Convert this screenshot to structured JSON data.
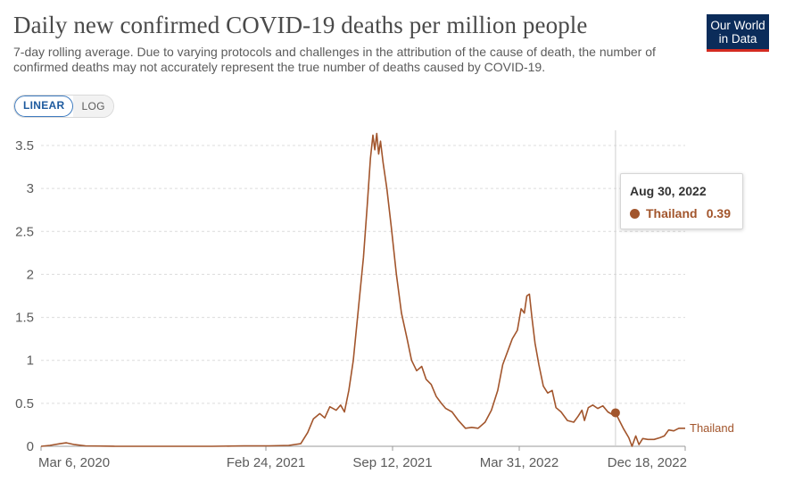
{
  "header": {
    "title": "Daily new confirmed COVID-19 deaths per million people",
    "subtitle": "7-day rolling average. Due to varying protocols and challenges in the attribution of the cause of death, the number of confirmed deaths may not accurately represent the true number of deaths caused by COVID-19."
  },
  "logo": {
    "line1": "Our World",
    "line2": "in Data",
    "bg_color": "#0b2c5a",
    "accent_color": "#d42b21"
  },
  "controls": {
    "linear_label": "LINEAR",
    "log_label": "LOG",
    "selected": "LINEAR"
  },
  "tooltip": {
    "date": "Aug 30, 2022",
    "series": "Thailand",
    "value": "0.39"
  },
  "chart_data": {
    "type": "line",
    "title": "Daily new confirmed COVID-19 deaths per million people",
    "subtitle": "7-day rolling average. Due to varying protocols and challenges in the attribution of the cause of death, the number of confirmed deaths may not accurately represent the true number of deaths caused by COVID-19.",
    "x_ticks": [
      "Mar 6, 2020",
      "Feb 24, 2021",
      "Sep 12, 2021",
      "Mar 31, 2022",
      "Dec 18, 2022"
    ],
    "y_ticks": [
      "0",
      "0.5",
      "1",
      "1.5",
      "2",
      "2.5",
      "3",
      "3.5"
    ],
    "xlim": [
      "2020-03-06",
      "2022-12-18"
    ],
    "ylim": [
      0,
      3.6
    ],
    "grid": "horizontal dashed",
    "log_scale": false,
    "hover_date": "2022-08-30",
    "series": [
      {
        "name": "Thailand",
        "color": "#a2552c",
        "points": [
          [
            "2020-03-06",
            0.0
          ],
          [
            "2020-03-20",
            0.01
          ],
          [
            "2020-04-05",
            0.03
          ],
          [
            "2020-04-15",
            0.04
          ],
          [
            "2020-04-28",
            0.02
          ],
          [
            "2020-05-15",
            0.005
          ],
          [
            "2020-07-01",
            0.0
          ],
          [
            "2020-12-01",
            0.0
          ],
          [
            "2021-01-20",
            0.005
          ],
          [
            "2021-03-01",
            0.005
          ],
          [
            "2021-04-01",
            0.01
          ],
          [
            "2021-04-20",
            0.03
          ],
          [
            "2021-05-01",
            0.16
          ],
          [
            "2021-05-10",
            0.32
          ],
          [
            "2021-05-20",
            0.38
          ],
          [
            "2021-05-28",
            0.33
          ],
          [
            "2021-06-05",
            0.46
          ],
          [
            "2021-06-15",
            0.42
          ],
          [
            "2021-06-22",
            0.48
          ],
          [
            "2021-06-28",
            0.4
          ],
          [
            "2021-07-05",
            0.65
          ],
          [
            "2021-07-12",
            1.0
          ],
          [
            "2021-07-20",
            1.6
          ],
          [
            "2021-07-28",
            2.2
          ],
          [
            "2021-08-03",
            2.8
          ],
          [
            "2021-08-08",
            3.35
          ],
          [
            "2021-08-12",
            3.62
          ],
          [
            "2021-08-15",
            3.45
          ],
          [
            "2021-08-18",
            3.64
          ],
          [
            "2021-08-21",
            3.4
          ],
          [
            "2021-08-24",
            3.55
          ],
          [
            "2021-08-28",
            3.3
          ],
          [
            "2021-09-03",
            3.0
          ],
          [
            "2021-09-10",
            2.55
          ],
          [
            "2021-09-18",
            2.0
          ],
          [
            "2021-09-26",
            1.55
          ],
          [
            "2021-10-05",
            1.25
          ],
          [
            "2021-10-12",
            1.0
          ],
          [
            "2021-10-20",
            0.88
          ],
          [
            "2021-10-28",
            0.93
          ],
          [
            "2021-11-04",
            0.78
          ],
          [
            "2021-11-12",
            0.72
          ],
          [
            "2021-11-20",
            0.58
          ],
          [
            "2021-11-28",
            0.5
          ],
          [
            "2021-12-05",
            0.44
          ],
          [
            "2021-12-15",
            0.4
          ],
          [
            "2021-12-25",
            0.3
          ],
          [
            "2022-01-05",
            0.21
          ],
          [
            "2022-01-15",
            0.22
          ],
          [
            "2022-01-25",
            0.21
          ],
          [
            "2022-02-05",
            0.28
          ],
          [
            "2022-02-15",
            0.42
          ],
          [
            "2022-02-25",
            0.65
          ],
          [
            "2022-03-05",
            0.95
          ],
          [
            "2022-03-15",
            1.15
          ],
          [
            "2022-03-20",
            1.25
          ],
          [
            "2022-03-28",
            1.35
          ],
          [
            "2022-04-03",
            1.6
          ],
          [
            "2022-04-08",
            1.55
          ],
          [
            "2022-04-12",
            1.75
          ],
          [
            "2022-04-16",
            1.77
          ],
          [
            "2022-04-20",
            1.5
          ],
          [
            "2022-04-25",
            1.2
          ],
          [
            "2022-05-01",
            0.95
          ],
          [
            "2022-05-08",
            0.7
          ],
          [
            "2022-05-15",
            0.62
          ],
          [
            "2022-05-22",
            0.65
          ],
          [
            "2022-05-28",
            0.45
          ],
          [
            "2022-06-05",
            0.4
          ],
          [
            "2022-06-15",
            0.3
          ],
          [
            "2022-06-25",
            0.28
          ],
          [
            "2022-07-02",
            0.35
          ],
          [
            "2022-07-08",
            0.42
          ],
          [
            "2022-07-12",
            0.3
          ],
          [
            "2022-07-18",
            0.45
          ],
          [
            "2022-07-25",
            0.48
          ],
          [
            "2022-08-02",
            0.44
          ],
          [
            "2022-08-10",
            0.47
          ],
          [
            "2022-08-18",
            0.4
          ],
          [
            "2022-08-25",
            0.37
          ],
          [
            "2022-08-30",
            0.39
          ],
          [
            "2022-09-05",
            0.3
          ],
          [
            "2022-09-12",
            0.2
          ],
          [
            "2022-09-20",
            0.1
          ],
          [
            "2022-09-25",
            0.0
          ],
          [
            "2022-10-01",
            0.12
          ],
          [
            "2022-10-06",
            0.02
          ],
          [
            "2022-10-12",
            0.09
          ],
          [
            "2022-10-20",
            0.08
          ],
          [
            "2022-10-30",
            0.08
          ],
          [
            "2022-11-08",
            0.1
          ],
          [
            "2022-11-15",
            0.12
          ],
          [
            "2022-11-22",
            0.19
          ],
          [
            "2022-11-30",
            0.18
          ],
          [
            "2022-12-08",
            0.21
          ],
          [
            "2022-12-18",
            0.21
          ]
        ]
      }
    ]
  }
}
